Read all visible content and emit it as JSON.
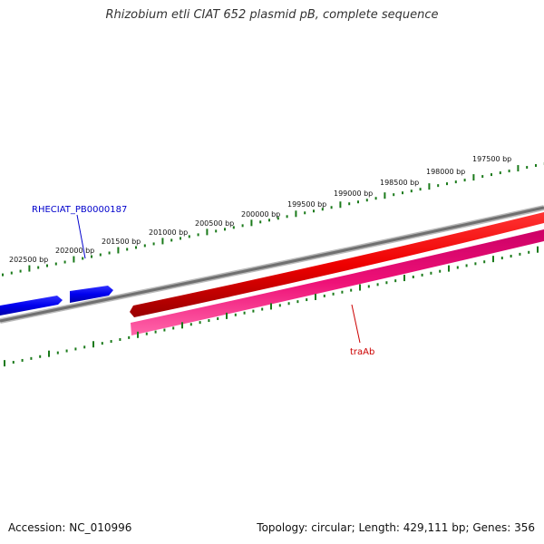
{
  "title": "Rhizobium etli CIAT 652 plasmid pB, complete sequence",
  "footer": {
    "accession": "Accession: NC_010996",
    "summary": "Topology: circular; Length: 429,111 bp; Genes: 356"
  },
  "colors": {
    "backbone": "#808080",
    "ticks": "#1a7a1a",
    "forward_gene": "#0000ee",
    "reverse_cds": "#ee0000",
    "reverse_gene": "#ee1177",
    "forward_label": "#0000cc",
    "reverse_label": "#cc0000"
  },
  "scale": {
    "tick_labels": [
      "202500 bp",
      "202000 bp",
      "201500 bp",
      "201000 bp",
      "200500 bp",
      "200000 bp",
      "199500 bp",
      "199000 bp",
      "198500 bp",
      "198000 bp",
      "197500 bp"
    ]
  },
  "features": [
    {
      "name": "RHECIAT_PB0000187",
      "strand": "forward",
      "color_key": "forward_label"
    },
    {
      "name": "traAb",
      "strand": "reverse",
      "color_key": "reverse_label"
    }
  ]
}
